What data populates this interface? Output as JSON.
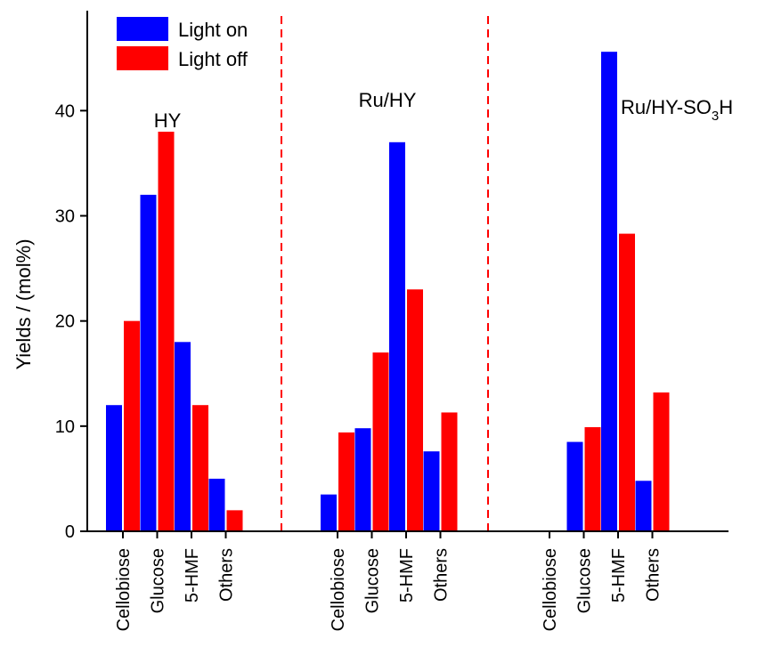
{
  "chart_data": {
    "type": "bar",
    "ylabel": "Yields / (mol%)",
    "xlabel": "",
    "ylim": [
      0,
      49
    ],
    "yticks": [
      0,
      10,
      20,
      30,
      40
    ],
    "colors": {
      "light_on": "#0000ff",
      "light_off": "#ff0000",
      "divider": "#ff0000"
    },
    "legend": {
      "position": "top-left",
      "entries": [
        {
          "key": "light_on",
          "label": "Light on"
        },
        {
          "key": "light_off",
          "label": "Light off"
        }
      ]
    },
    "categories": [
      "Cellobiose",
      "Glucose",
      "5-HMF",
      "Others"
    ],
    "groups": [
      {
        "name": "HY",
        "name_main": "HY",
        "name_sub": "",
        "name_tail": "",
        "light_on": [
          12,
          32,
          18,
          5
        ],
        "light_off": [
          20,
          38,
          12,
          2
        ]
      },
      {
        "name": "Ru/HY",
        "name_main": "Ru/HY",
        "name_sub": "",
        "name_tail": "",
        "light_on": [
          3.5,
          9.8,
          37,
          7.6
        ],
        "light_off": [
          9.4,
          17,
          23,
          11.3
        ]
      },
      {
        "name": "Ru/HY-SO3H",
        "name_main": "Ru/HY-SO",
        "name_sub": "3",
        "name_tail": "H",
        "light_on": [
          0,
          8.5,
          45.6,
          4.8
        ],
        "light_off": [
          0,
          9.9,
          28.3,
          13.2
        ]
      }
    ]
  }
}
